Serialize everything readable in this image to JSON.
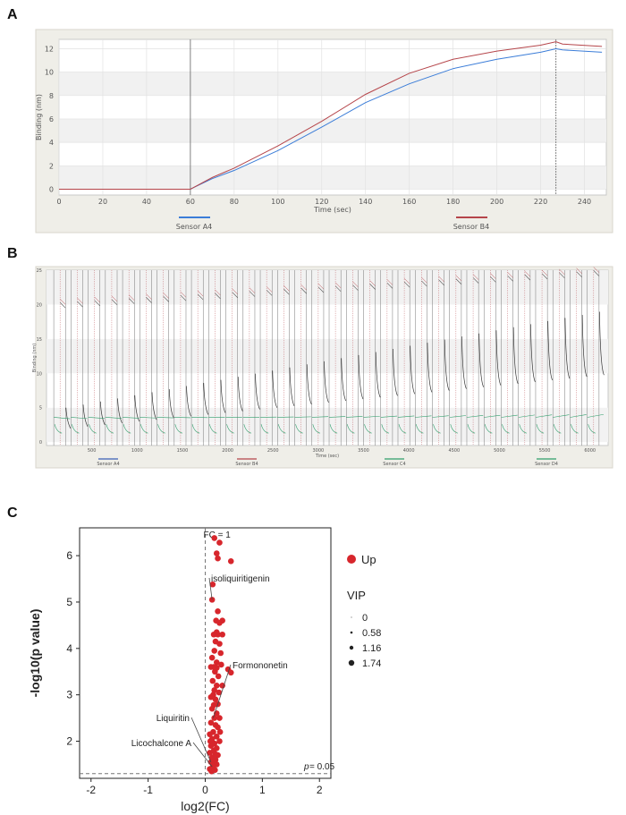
{
  "panels": {
    "a": "A",
    "b": "B",
    "c": "C"
  },
  "chart_data": [
    {
      "type": "line",
      "xlabel": "Time (sec)",
      "ylabel": "Binding (nm)",
      "xlim": [
        0,
        250
      ],
      "ylim": [
        -0.5,
        12.8
      ],
      "xticks": [
        0,
        20,
        40,
        60,
        80,
        100,
        120,
        140,
        160,
        180,
        200,
        220,
        240
      ],
      "yticks": [
        0,
        2,
        4,
        6,
        8,
        10,
        12
      ],
      "grid": true,
      "legend": "bottom",
      "series": [
        {
          "name": "Sensor A4",
          "color": "#3b7dd8",
          "x": [
            0,
            60,
            61,
            70,
            80,
            100,
            120,
            140,
            160,
            180,
            200,
            220,
            227,
            230,
            248
          ],
          "y": [
            0,
            0,
            0.1,
            0.9,
            1.6,
            3.3,
            5.3,
            7.4,
            9.0,
            10.3,
            11.1,
            11.7,
            12.0,
            11.9,
            11.7
          ]
        },
        {
          "name": "Sensor B4",
          "color": "#b5454a",
          "x": [
            0,
            60,
            61,
            70,
            80,
            100,
            120,
            140,
            160,
            180,
            200,
            220,
            227,
            230,
            248
          ],
          "y": [
            0,
            0,
            0.1,
            1.0,
            1.8,
            3.7,
            5.8,
            8.1,
            9.9,
            11.1,
            11.8,
            12.3,
            12.6,
            12.4,
            12.2
          ]
        }
      ],
      "vlines": [
        60,
        227
      ]
    },
    {
      "type": "line",
      "xlabel": "Time (sec)",
      "ylabel": "Binding (nm)",
      "xlim": [
        0,
        6200
      ],
      "ylim": [
        -0.5,
        25
      ],
      "xticks": [
        500,
        1000,
        1500,
        2000,
        2500,
        3000,
        3500,
        4000,
        4500,
        5000,
        5500,
        6000
      ],
      "yticks": [
        0,
        5,
        10,
        15,
        20,
        25
      ],
      "grid": true,
      "legend": "bottom",
      "series": [
        {
          "name": "Sensor A4",
          "color": "#3b5fb5"
        },
        {
          "name": "Sensor B4",
          "color": "#b5454a"
        },
        {
          "name": "Sensor C4",
          "color": "#2e9e6a"
        },
        {
          "name": "Sensor D4",
          "color": "#2e9e6a"
        }
      ],
      "cycles": 32,
      "cycle_start": 80,
      "cycle_period": 190
    },
    {
      "type": "scatter",
      "xlabel": "log2(FC)",
      "ylabel": "-log10(p value)",
      "xlim": [
        -2.2,
        2.2
      ],
      "ylim": [
        1.2,
        6.6
      ],
      "xticks": [
        -2,
        -1,
        0,
        1,
        2
      ],
      "yticks": [
        2,
        3,
        4,
        5,
        6
      ],
      "vline_label": "FC = 1",
      "hline_label": "= 0.05",
      "hline_label_p": "p",
      "hline_y": 1.301,
      "legend_up": "Up",
      "legend_vip_title": "VIP",
      "vip_levels": [
        "0",
        "0.58",
        "1.16",
        "1.74"
      ],
      "point_color": "#d7262c",
      "points": [
        [
          0.16,
          6.38
        ],
        [
          0.25,
          6.28
        ],
        [
          0.45,
          5.88
        ],
        [
          0.22,
          5.94
        ],
        [
          0.2,
          6.05
        ],
        [
          0.13,
          5.38
        ],
        [
          0.12,
          5.05
        ],
        [
          0.22,
          4.8
        ],
        [
          0.3,
          4.6
        ],
        [
          0.25,
          4.55
        ],
        [
          0.2,
          4.35
        ],
        [
          0.15,
          4.3
        ],
        [
          0.22,
          4.3
        ],
        [
          0.3,
          4.3
        ],
        [
          0.18,
          4.15
        ],
        [
          0.25,
          4.1
        ],
        [
          0.16,
          3.95
        ],
        [
          0.27,
          3.9
        ],
        [
          0.12,
          3.8
        ],
        [
          0.2,
          3.7
        ],
        [
          0.28,
          3.65
        ],
        [
          0.1,
          3.6
        ],
        [
          0.15,
          3.6
        ],
        [
          0.2,
          3.58
        ],
        [
          0.4,
          3.55
        ],
        [
          0.45,
          3.48
        ],
        [
          0.17,
          3.5
        ],
        [
          0.23,
          3.4
        ],
        [
          0.13,
          3.3
        ],
        [
          0.2,
          3.2
        ],
        [
          0.3,
          3.2
        ],
        [
          0.16,
          3.1
        ],
        [
          0.24,
          3.05
        ],
        [
          0.1,
          2.95
        ],
        [
          0.18,
          2.9
        ],
        [
          0.15,
          2.78
        ],
        [
          0.22,
          2.8
        ],
        [
          0.12,
          2.7
        ],
        [
          0.2,
          2.6
        ],
        [
          0.16,
          2.5
        ],
        [
          0.25,
          2.5
        ],
        [
          0.1,
          2.4
        ],
        [
          0.18,
          2.35
        ],
        [
          0.22,
          2.3
        ],
        [
          0.14,
          2.2
        ],
        [
          0.08,
          2.15
        ],
        [
          0.2,
          2.1
        ],
        [
          0.12,
          2.05
        ],
        [
          0.25,
          2.0
        ],
        [
          0.16,
          1.95
        ],
        [
          0.1,
          1.9
        ],
        [
          0.2,
          1.85
        ],
        [
          0.15,
          1.8
        ],
        [
          0.08,
          1.75
        ],
        [
          0.22,
          1.7
        ],
        [
          0.12,
          1.65
        ],
        [
          0.18,
          1.6
        ],
        [
          0.1,
          1.55
        ],
        [
          0.15,
          1.5
        ],
        [
          0.2,
          1.5
        ],
        [
          0.13,
          1.45
        ],
        [
          0.08,
          1.4
        ],
        [
          0.17,
          1.38
        ],
        [
          0.11,
          1.35
        ],
        [
          0.14,
          1.55
        ],
        [
          0.18,
          1.72
        ],
        [
          0.09,
          2.0
        ],
        [
          0.26,
          2.2
        ],
        [
          0.14,
          3.0
        ],
        [
          0.19,
          4.6
        ]
      ],
      "annotations": [
        {
          "label": "isoliquiritigenin",
          "x": 0.12,
          "y": 5.05
        },
        {
          "label": "Formononetin",
          "x": 0.14,
          "y": 2.5
        },
        {
          "label": "Liquiritin",
          "x": 0.1,
          "y": 1.55
        },
        {
          "label": "Licochalcone A",
          "x": 0.12,
          "y": 1.45
        }
      ]
    }
  ]
}
